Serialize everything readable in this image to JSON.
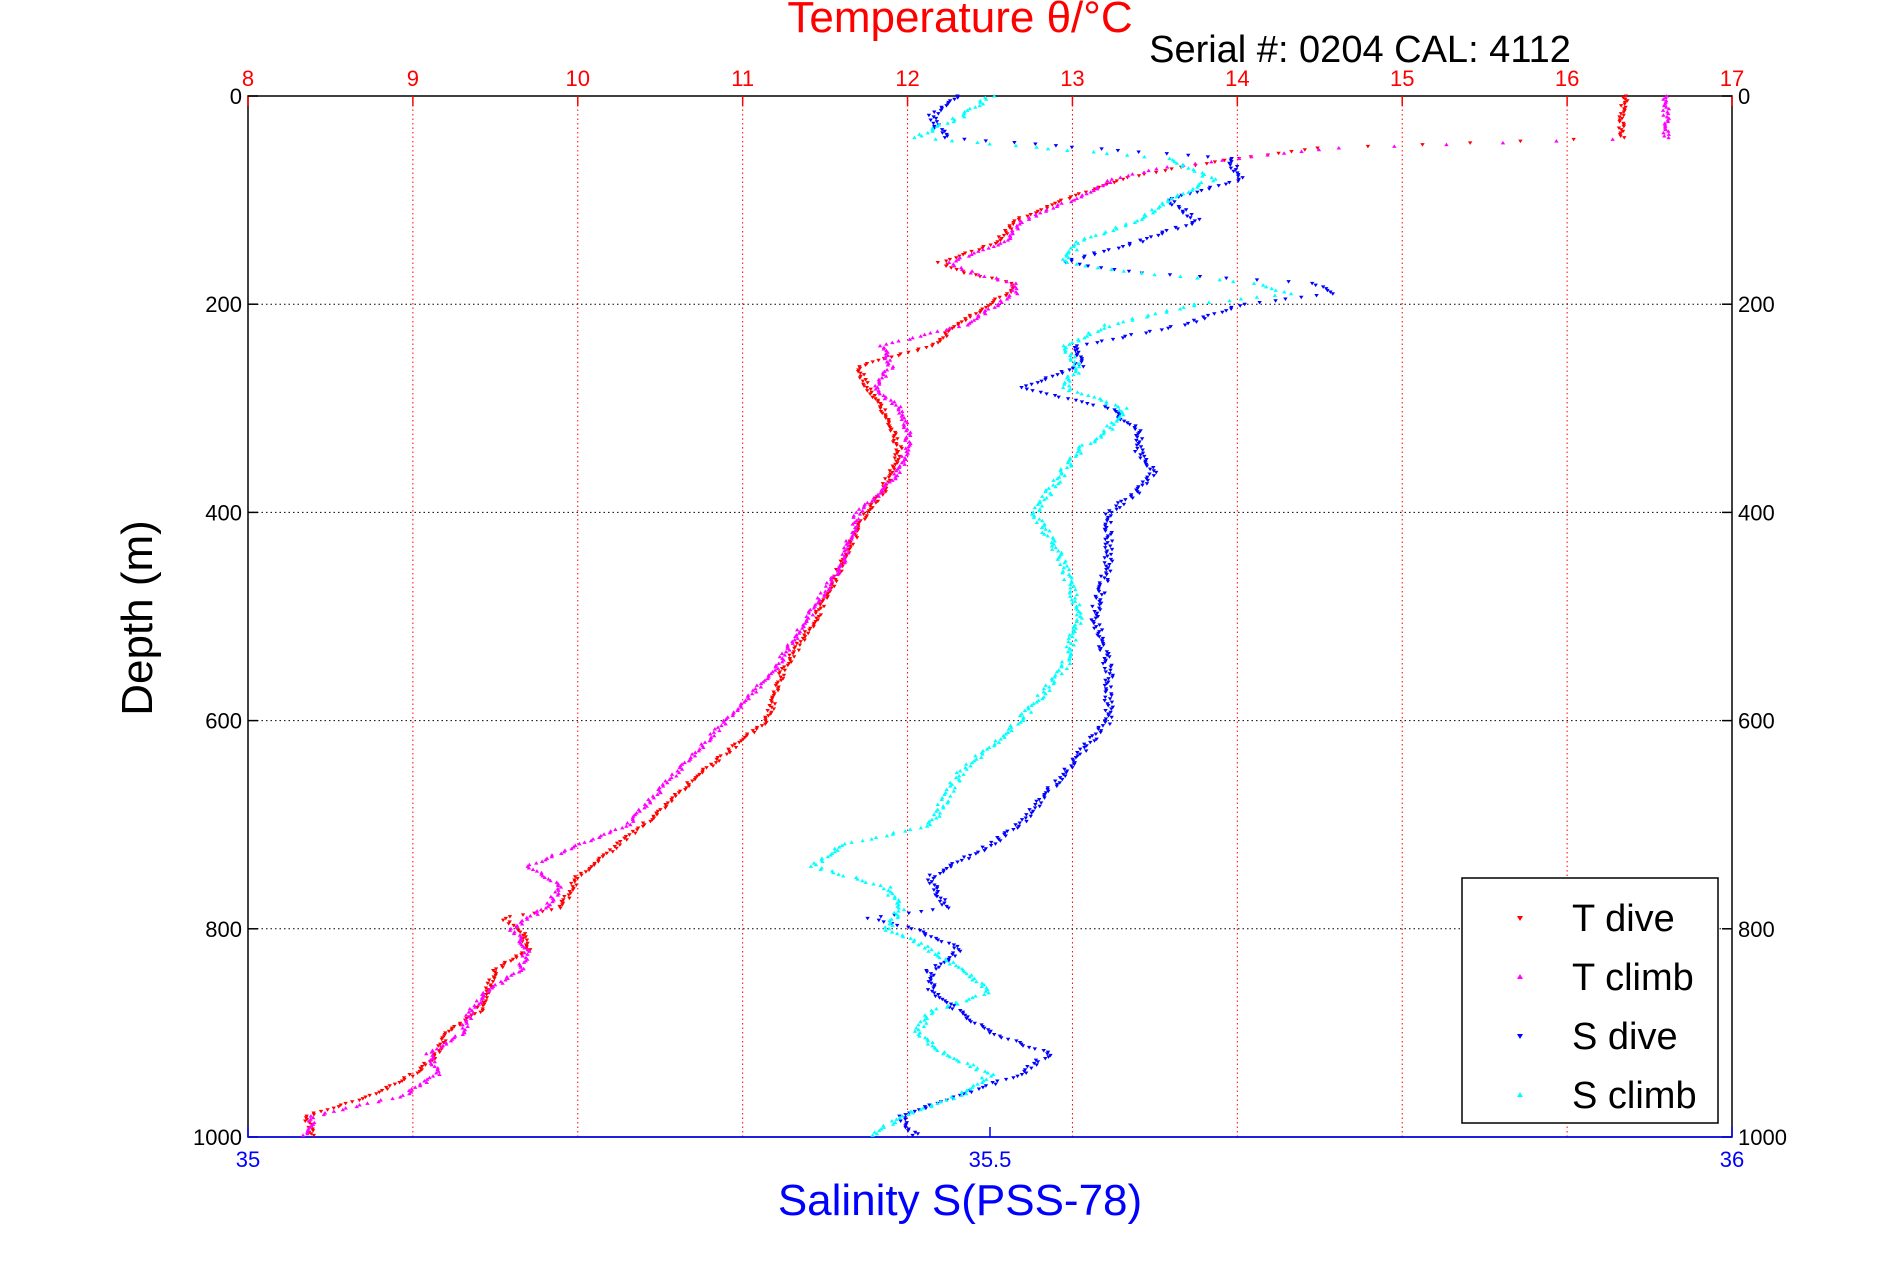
{
  "chart_data": {
    "type": "scatter",
    "title": "Temperature θ/°C",
    "subtitle": "Serial #: 0204  CAL: 4112",
    "xlabel": "Salinity S(PSS-78)",
    "ylabel": "Depth (m)",
    "x_top_ticks": [
      "8",
      "9",
      "10",
      "11",
      "12",
      "13",
      "14",
      "15",
      "16",
      "17"
    ],
    "x_bottom_ticks": [
      "35",
      "35.5",
      "36"
    ],
    "y_ticks": [
      "0",
      "200",
      "400",
      "600",
      "800",
      "1000"
    ],
    "temperature_lim": [
      8,
      17
    ],
    "salinity_lim": [
      35,
      36
    ],
    "ylim": [
      0,
      1000
    ],
    "y_reversed": true,
    "grid": true,
    "legend_position": "bottom-right",
    "colors": {
      "T dive": "#ff0000",
      "T climb": "#ff00ff",
      "S dive": "#0000ff",
      "S climb": "#00ffff"
    },
    "series": [
      {
        "name": "T dive",
        "axis": "temperature",
        "depth": [
          0,
          20,
          40,
          50,
          60,
          70,
          80,
          100,
          120,
          140,
          160,
          170,
          180,
          190,
          200,
          220,
          240,
          260,
          280,
          300,
          320,
          340,
          360,
          380,
          400,
          450,
          500,
          550,
          600,
          650,
          700,
          750,
          780,
          790,
          800,
          820,
          840,
          860,
          880,
          900,
          920,
          940,
          960,
          980,
          1000
        ],
        "values": [
          16.35,
          16.33,
          16.33,
          14.5,
          14.0,
          13.6,
          13.3,
          12.95,
          12.65,
          12.55,
          12.2,
          12.35,
          12.65,
          12.6,
          12.5,
          12.3,
          12.15,
          11.7,
          11.75,
          11.85,
          11.9,
          11.95,
          11.9,
          11.85,
          11.75,
          11.6,
          11.45,
          11.25,
          11.15,
          10.75,
          10.4,
          10.0,
          9.9,
          9.55,
          9.65,
          9.7,
          9.5,
          9.45,
          9.4,
          9.2,
          9.15,
          9.0,
          8.75,
          8.35,
          8.4
        ]
      },
      {
        "name": "T climb",
        "axis": "temperature",
        "depth": [
          0,
          20,
          40,
          50,
          60,
          70,
          80,
          100,
          120,
          140,
          160,
          170,
          180,
          190,
          200,
          220,
          240,
          260,
          280,
          300,
          320,
          340,
          360,
          380,
          400,
          450,
          500,
          550,
          600,
          650,
          700,
          720,
          740,
          760,
          780,
          800,
          820,
          840,
          860,
          880,
          900,
          920,
          940,
          960,
          980,
          1000
        ],
        "values": [
          16.6,
          16.6,
          16.6,
          14.6,
          14.0,
          13.5,
          13.25,
          13.0,
          12.7,
          12.6,
          12.25,
          12.4,
          12.65,
          12.65,
          12.55,
          12.35,
          11.85,
          11.9,
          11.8,
          11.95,
          12.0,
          12.0,
          11.95,
          11.85,
          11.7,
          11.6,
          11.4,
          11.2,
          10.9,
          10.6,
          10.3,
          10.0,
          9.7,
          9.9,
          9.8,
          9.6,
          9.7,
          9.65,
          9.45,
          9.35,
          9.3,
          9.1,
          9.15,
          8.95,
          8.4,
          8.35
        ]
      },
      {
        "name": "S dive",
        "axis": "salinity",
        "depth": [
          0,
          20,
          40,
          60,
          80,
          100,
          120,
          140,
          160,
          170,
          180,
          190,
          200,
          220,
          240,
          260,
          280,
          300,
          320,
          340,
          360,
          380,
          400,
          450,
          500,
          550,
          600,
          650,
          700,
          720,
          750,
          780,
          790,
          800,
          820,
          840,
          860,
          880,
          900,
          920,
          940,
          960,
          980,
          1000
        ],
        "values": [
          35.48,
          35.46,
          35.47,
          35.66,
          35.67,
          35.62,
          35.64,
          35.6,
          35.55,
          35.6,
          35.72,
          35.73,
          35.67,
          35.63,
          35.56,
          35.56,
          35.52,
          35.58,
          35.6,
          35.6,
          35.61,
          35.6,
          35.58,
          35.58,
          35.57,
          35.58,
          35.58,
          35.55,
          35.52,
          35.5,
          35.46,
          35.47,
          35.42,
          35.45,
          35.48,
          35.46,
          35.46,
          35.48,
          35.5,
          35.54,
          35.52,
          35.48,
          35.44,
          35.45
        ]
      },
      {
        "name": "S climb",
        "axis": "salinity",
        "depth": [
          0,
          20,
          40,
          60,
          80,
          100,
          120,
          140,
          160,
          170,
          180,
          190,
          200,
          220,
          240,
          260,
          280,
          300,
          320,
          340,
          360,
          380,
          400,
          450,
          500,
          550,
          600,
          650,
          700,
          720,
          740,
          760,
          780,
          800,
          820,
          840,
          860,
          880,
          900,
          920,
          940,
          960,
          980,
          1000
        ],
        "values": [
          35.5,
          35.48,
          35.45,
          35.62,
          35.65,
          35.62,
          35.6,
          35.56,
          35.55,
          35.6,
          35.68,
          35.7,
          35.64,
          35.58,
          35.55,
          35.56,
          35.55,
          35.59,
          35.58,
          35.56,
          35.55,
          35.54,
          35.53,
          35.55,
          35.56,
          35.55,
          35.52,
          35.48,
          35.46,
          35.4,
          35.38,
          35.43,
          35.44,
          35.43,
          35.46,
          35.48,
          35.5,
          35.46,
          35.45,
          35.47,
          35.5,
          35.48,
          35.44,
          35.42
        ]
      }
    ]
  }
}
